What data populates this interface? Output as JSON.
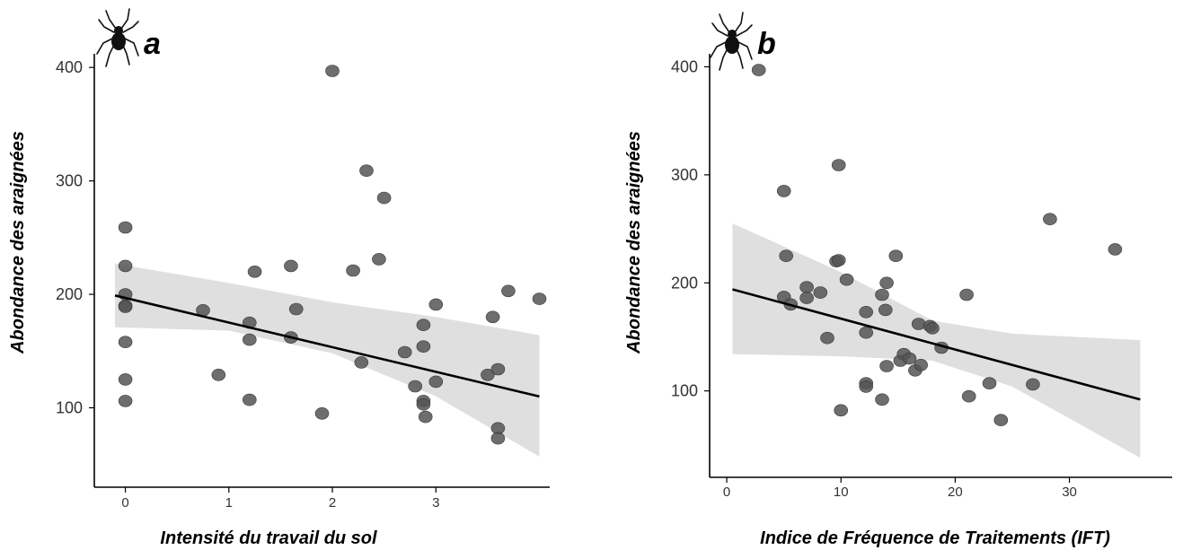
{
  "chart_data": [
    {
      "type": "scatter",
      "panel_label": "a",
      "icon": "spider-icon",
      "xlabel": "Intensité du travail du sol",
      "ylabel": "Abondance des araignées",
      "xlim": [
        -0.3,
        4.1
      ],
      "ylim": [
        30,
        412
      ],
      "xticks": [
        0,
        1,
        2,
        3
      ],
      "yticks": [
        100,
        200,
        300,
        400
      ],
      "grid": false,
      "points": [
        [
          0,
          259
        ],
        [
          0,
          225
        ],
        [
          0,
          200
        ],
        [
          0,
          190
        ],
        [
          0,
          189
        ],
        [
          0,
          158
        ],
        [
          0,
          125
        ],
        [
          0,
          106
        ],
        [
          0.75,
          186
        ],
        [
          0.9,
          129
        ],
        [
          1.2,
          175
        ],
        [
          1.2,
          160
        ],
        [
          1.2,
          107
        ],
        [
          1.25,
          220
        ],
        [
          1.6,
          225
        ],
        [
          1.6,
          162
        ],
        [
          1.65,
          187
        ],
        [
          1.9,
          95
        ],
        [
          2.0,
          397
        ],
        [
          2.2,
          221
        ],
        [
          2.28,
          140
        ],
        [
          2.33,
          309
        ],
        [
          2.45,
          231
        ],
        [
          2.5,
          285
        ],
        [
          2.7,
          149
        ],
        [
          2.8,
          119
        ],
        [
          2.88,
          173
        ],
        [
          2.88,
          154
        ],
        [
          2.88,
          106
        ],
        [
          2.88,
          103
        ],
        [
          2.9,
          92
        ],
        [
          3.0,
          191
        ],
        [
          3.0,
          123
        ],
        [
          3.5,
          129
        ],
        [
          3.55,
          180
        ],
        [
          3.6,
          134
        ],
        [
          3.6,
          82
        ],
        [
          3.6,
          73
        ],
        [
          3.7,
          203
        ],
        [
          4.0,
          196
        ]
      ],
      "fit": {
        "x0": -0.1,
        "y0": 199,
        "x1": 4.0,
        "y1": 110
      },
      "ci_upper": [
        [
          -0.1,
          227
        ],
        [
          1.0,
          210
        ],
        [
          2.0,
          193
        ],
        [
          3.0,
          180
        ],
        [
          4.0,
          164
        ]
      ],
      "ci_lower": [
        [
          -0.1,
          171
        ],
        [
          1.0,
          168
        ],
        [
          2.0,
          148
        ],
        [
          3.0,
          110
        ],
        [
          4.0,
          57
        ]
      ],
      "colors": {
        "point": "#555555",
        "band": "#d9d9d9",
        "line": "#000000"
      }
    },
    {
      "type": "scatter",
      "panel_label": "b",
      "icon": "spider-icon",
      "xlabel": "Indice de Fréquence de Traitements (IFT)",
      "ylabel": "Abondance des araignées",
      "xlim": [
        -1.5,
        39
      ],
      "ylim": [
        20,
        412
      ],
      "xticks": [
        0,
        10,
        20,
        30
      ],
      "yticks": [
        100,
        200,
        300,
        400
      ],
      "grid": false,
      "points": [
        [
          2.8,
          397
        ],
        [
          5.0,
          285
        ],
        [
          5.2,
          225
        ],
        [
          5.0,
          187
        ],
        [
          5.6,
          180
        ],
        [
          7.0,
          196
        ],
        [
          7.0,
          186
        ],
        [
          8.2,
          191
        ],
        [
          8.8,
          149
        ],
        [
          9.6,
          220
        ],
        [
          9.8,
          221
        ],
        [
          9.8,
          309
        ],
        [
          10.0,
          82
        ],
        [
          10.5,
          203
        ],
        [
          12.2,
          173
        ],
        [
          12.2,
          154
        ],
        [
          12.2,
          107
        ],
        [
          12.2,
          104
        ],
        [
          13.6,
          189
        ],
        [
          13.6,
          92
        ],
        [
          13.9,
          175
        ],
        [
          14.0,
          200
        ],
        [
          14.0,
          123
        ],
        [
          14.8,
          225
        ],
        [
          15.2,
          128
        ],
        [
          15.5,
          134
        ],
        [
          16.0,
          130
        ],
        [
          16.5,
          119
        ],
        [
          16.8,
          162
        ],
        [
          17.0,
          124
        ],
        [
          17.8,
          160
        ],
        [
          18.0,
          158
        ],
        [
          18.8,
          140
        ],
        [
          21.0,
          189
        ],
        [
          21.2,
          95
        ],
        [
          23.0,
          107
        ],
        [
          24.0,
          73
        ],
        [
          26.8,
          106
        ],
        [
          28.3,
          259
        ],
        [
          34.0,
          231
        ]
      ],
      "fit": {
        "x0": 0.5,
        "y0": 194,
        "x1": 36.2,
        "y1": 92
      },
      "ci_upper": [
        [
          0.5,
          255
        ],
        [
          10,
          210
        ],
        [
          18,
          165
        ],
        [
          25,
          153
        ],
        [
          36.2,
          147
        ]
      ],
      "ci_lower": [
        [
          0.5,
          134
        ],
        [
          10,
          132
        ],
        [
          18,
          128
        ],
        [
          25,
          104
        ],
        [
          36.2,
          38
        ]
      ],
      "colors": {
        "point": "#555555",
        "band": "#d9d9d9",
        "line": "#000000"
      }
    }
  ]
}
